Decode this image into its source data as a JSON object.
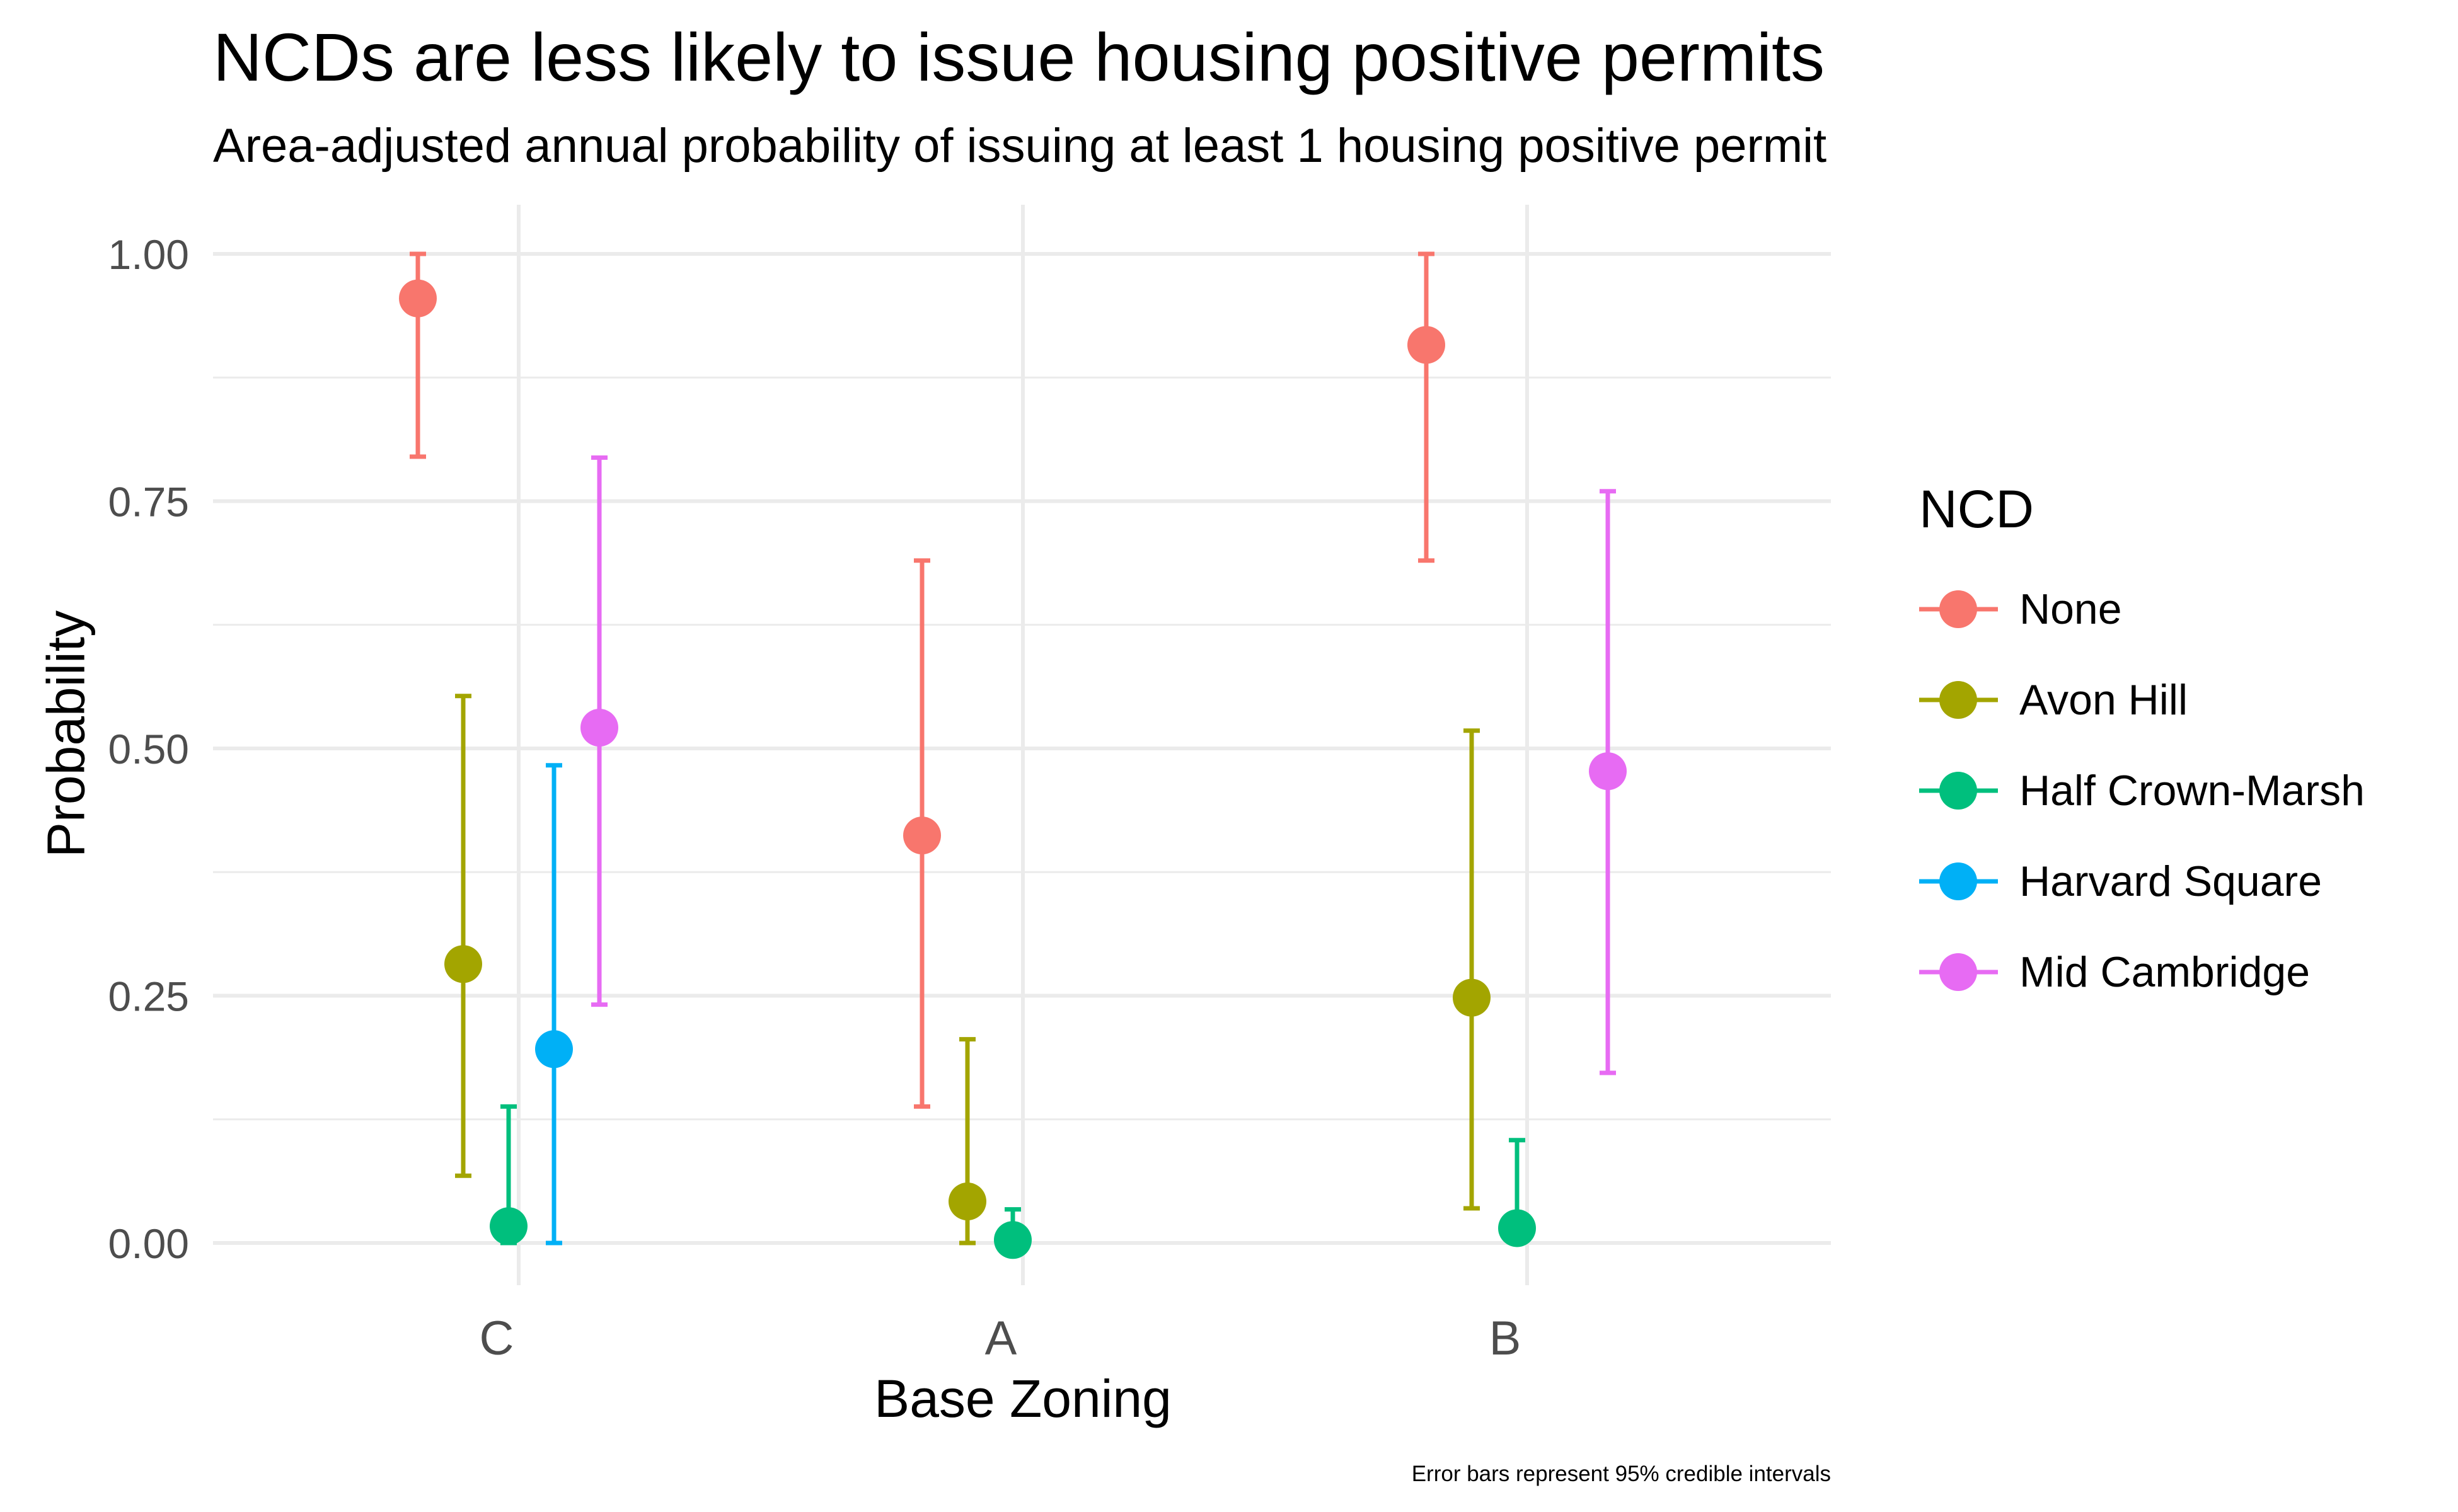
{
  "chart_data": {
    "type": "scatter",
    "title": "NCDs are less likely to issue housing positive permits",
    "subtitle": "Area-adjusted annual probability of issuing at least 1 housing positive permit",
    "xlabel": "Base Zoning",
    "ylabel": "Probability",
    "caption": "Error bars represent 95% credible intervals",
    "categories": [
      "C",
      "A",
      "B"
    ],
    "ylim": [
      -0.07,
      1.05
    ],
    "yticks": [
      "0.00",
      "0.25",
      "0.50",
      "0.75",
      "1.00"
    ],
    "grid": true,
    "legend_title": "NCD",
    "legend_position": "right",
    "series": [
      {
        "name": "None",
        "color": "#F8766D",
        "points": [
          {
            "x": "C",
            "y": 0.955,
            "lo": 0.795,
            "hi": 1.0
          },
          {
            "x": "A",
            "y": 0.412,
            "lo": 0.138,
            "hi": 0.69
          },
          {
            "x": "B",
            "y": 0.908,
            "lo": 0.69,
            "hi": 1.0
          }
        ]
      },
      {
        "name": "Avon Hill",
        "color": "#A3A500",
        "points": [
          {
            "x": "C",
            "y": 0.282,
            "lo": 0.068,
            "hi": 0.553
          },
          {
            "x": "A",
            "y": 0.042,
            "lo": 0.0,
            "hi": 0.206
          },
          {
            "x": "B",
            "y": 0.248,
            "lo": 0.035,
            "hi": 0.518
          }
        ]
      },
      {
        "name": "Half Crown-Marsh",
        "color": "#00BF7D",
        "points": [
          {
            "x": "C",
            "y": 0.017,
            "lo": 0.0,
            "hi": 0.138
          },
          {
            "x": "A",
            "y": 0.003,
            "lo": 0.0,
            "hi": 0.034
          },
          {
            "x": "B",
            "y": 0.015,
            "lo": 0.0,
            "hi": 0.104
          }
        ]
      },
      {
        "name": "Harvard Square",
        "color": "#00B0F6",
        "points": [
          {
            "x": "C",
            "y": 0.196,
            "lo": 0.0,
            "hi": 0.483
          }
        ]
      },
      {
        "name": "Mid Cambridge",
        "color": "#E76BF3",
        "points": [
          {
            "x": "C",
            "y": 0.521,
            "lo": 0.241,
            "hi": 0.794
          },
          {
            "x": "B",
            "y": 0.477,
            "lo": 0.172,
            "hi": 0.76
          }
        ]
      }
    ]
  }
}
